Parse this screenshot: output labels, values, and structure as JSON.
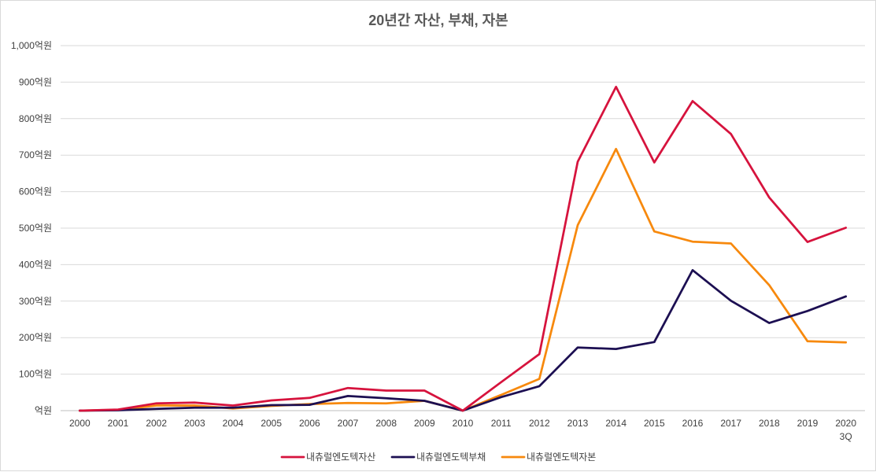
{
  "chart_data": {
    "type": "line",
    "title": "20년간 자산, 부채, 자본",
    "xlabel": "",
    "ylabel": "",
    "categories": [
      "2000",
      "2001",
      "2002",
      "2003",
      "2004",
      "2005",
      "2006",
      "2007",
      "2008",
      "2009",
      "2010",
      "2011",
      "2012",
      "2013",
      "2014",
      "2015",
      "2016",
      "2017",
      "2018",
      "2019",
      "2020"
    ],
    "category_sublabels": {
      "2020": "3Q"
    },
    "ylim": [
      0,
      1000
    ],
    "y_ticks": [
      0,
      100,
      200,
      300,
      400,
      500,
      600,
      700,
      800,
      900,
      1000
    ],
    "y_tick_labels": [
      "억원",
      "100억원",
      "200억원",
      "300억원",
      "400억원",
      "500억원",
      "600억원",
      "700억원",
      "800억원",
      "900억원",
      "1,000억원"
    ],
    "grid": true,
    "legend_position": "bottom",
    "series": [
      {
        "name": "내츄럴엔도텍자산",
        "color": "#d6133d",
        "values": [
          0,
          3,
          20,
          22,
          14,
          28,
          35,
          62,
          55,
          55,
          0,
          78,
          155,
          682,
          887,
          680,
          848,
          758,
          584,
          462,
          501
        ]
      },
      {
        "name": "내츄럴엔도텍부채",
        "color": "#1c0f52",
        "values": [
          0,
          1,
          5,
          8,
          8,
          15,
          16,
          40,
          34,
          27,
          0,
          37,
          67,
          173,
          169,
          188,
          385,
          301,
          240,
          273,
          313
        ]
      },
      {
        "name": "내츄럴엔도텍자본",
        "color": "#f7890d",
        "values": [
          0,
          2,
          14,
          14,
          6,
          13,
          18,
          21,
          20,
          27,
          0,
          43,
          87,
          508,
          717,
          491,
          463,
          458,
          344,
          190,
          187
        ]
      }
    ]
  }
}
